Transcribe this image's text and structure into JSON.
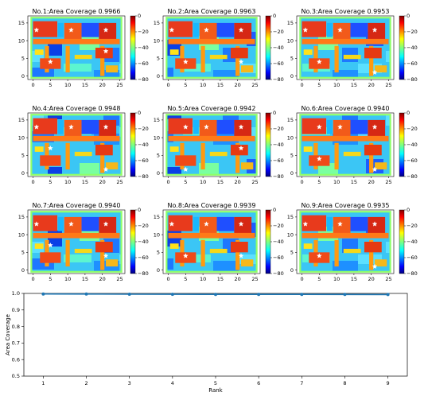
{
  "figure": {
    "colorbar_ticks": [
      "0",
      "−20",
      "−40",
      "−60",
      "−80"
    ],
    "heatmap_x_ticks": [
      "0",
      "5",
      "10",
      "15",
      "20",
      "25"
    ],
    "heatmap_y_ticks": [
      "0",
      "5",
      "10",
      "15"
    ],
    "colormap": "jet"
  },
  "panels": [
    {
      "title": "No.1:Area Coverage 0.9966",
      "rank": 1,
      "coverage": 0.9966,
      "stars": [
        [
          1,
          13
        ],
        [
          11,
          13
        ],
        [
          21,
          13
        ],
        [
          5,
          4
        ],
        [
          21,
          7
        ]
      ]
    },
    {
      "title": "No.2:Area Coverage 0.9963",
      "rank": 2,
      "coverage": 0.9963,
      "stars": [
        [
          1,
          13
        ],
        [
          11,
          13
        ],
        [
          21,
          13
        ],
        [
          5,
          4
        ],
        [
          21,
          4
        ]
      ]
    },
    {
      "title": "No.3:Area Coverage 0.9953",
      "rank": 3,
      "coverage": 0.9953,
      "stars": [
        [
          1,
          13
        ],
        [
          11,
          13
        ],
        [
          21,
          13
        ],
        [
          5,
          4
        ],
        [
          21,
          1
        ]
      ]
    },
    {
      "title": "No.4:Area Coverage 0.9948",
      "rank": 4,
      "coverage": 0.9948,
      "stars": [
        [
          1,
          13
        ],
        [
          11,
          13
        ],
        [
          21,
          13
        ],
        [
          5,
          7
        ],
        [
          21,
          1
        ]
      ]
    },
    {
      "title": "No.5:Area Coverage 0.9942",
      "rank": 5,
      "coverage": 0.9942,
      "stars": [
        [
          5,
          13
        ],
        [
          11,
          13
        ],
        [
          21,
          13
        ],
        [
          5,
          1
        ],
        [
          21,
          7
        ]
      ]
    },
    {
      "title": "No.6:Area Coverage 0.9940",
      "rank": 6,
      "coverage": 0.994,
      "stars": [
        [
          5,
          13
        ],
        [
          11,
          13
        ],
        [
          21,
          13
        ],
        [
          5,
          4
        ],
        [
          21,
          1
        ]
      ]
    },
    {
      "title": "No.7:Area Coverage 0.9940",
      "rank": 7,
      "coverage": 0.994,
      "stars": [
        [
          1,
          13
        ],
        [
          11,
          13
        ],
        [
          21,
          13
        ],
        [
          5,
          7
        ],
        [
          21,
          4
        ]
      ]
    },
    {
      "title": "No.8:Area Coverage 0.9939",
      "rank": 8,
      "coverage": 0.9939,
      "stars": [
        [
          1,
          13
        ],
        [
          11,
          13
        ],
        [
          21,
          13
        ],
        [
          5,
          4
        ],
        [
          21,
          4
        ]
      ]
    },
    {
      "title": "No.9:Area Coverage 0.9935",
      "rank": 9,
      "coverage": 0.9935,
      "stars": [
        [
          1,
          13
        ],
        [
          11,
          13
        ],
        [
          21,
          13
        ],
        [
          5,
          4
        ],
        [
          21,
          1
        ]
      ]
    }
  ],
  "chart_data": {
    "type": "line",
    "xlabel": "Rank",
    "ylabel": "Area Coverage",
    "x": [
      1,
      2,
      3,
      4,
      5,
      6,
      7,
      8,
      9
    ],
    "series": [
      {
        "values": [
          0.9966,
          0.9963,
          0.9953,
          0.9948,
          0.9942,
          0.994,
          0.994,
          0.9939,
          0.9935
        ],
        "color": "#1f77b4"
      }
    ],
    "x_ticks": [
      "1",
      "2",
      "3",
      "4",
      "5",
      "6",
      "7",
      "8",
      "9"
    ],
    "y_ticks": [
      "0.5",
      "0.6",
      "0.7",
      "0.8",
      "0.9",
      "1.0"
    ],
    "ylim": [
      0.5,
      1.0
    ],
    "grid": false
  }
}
